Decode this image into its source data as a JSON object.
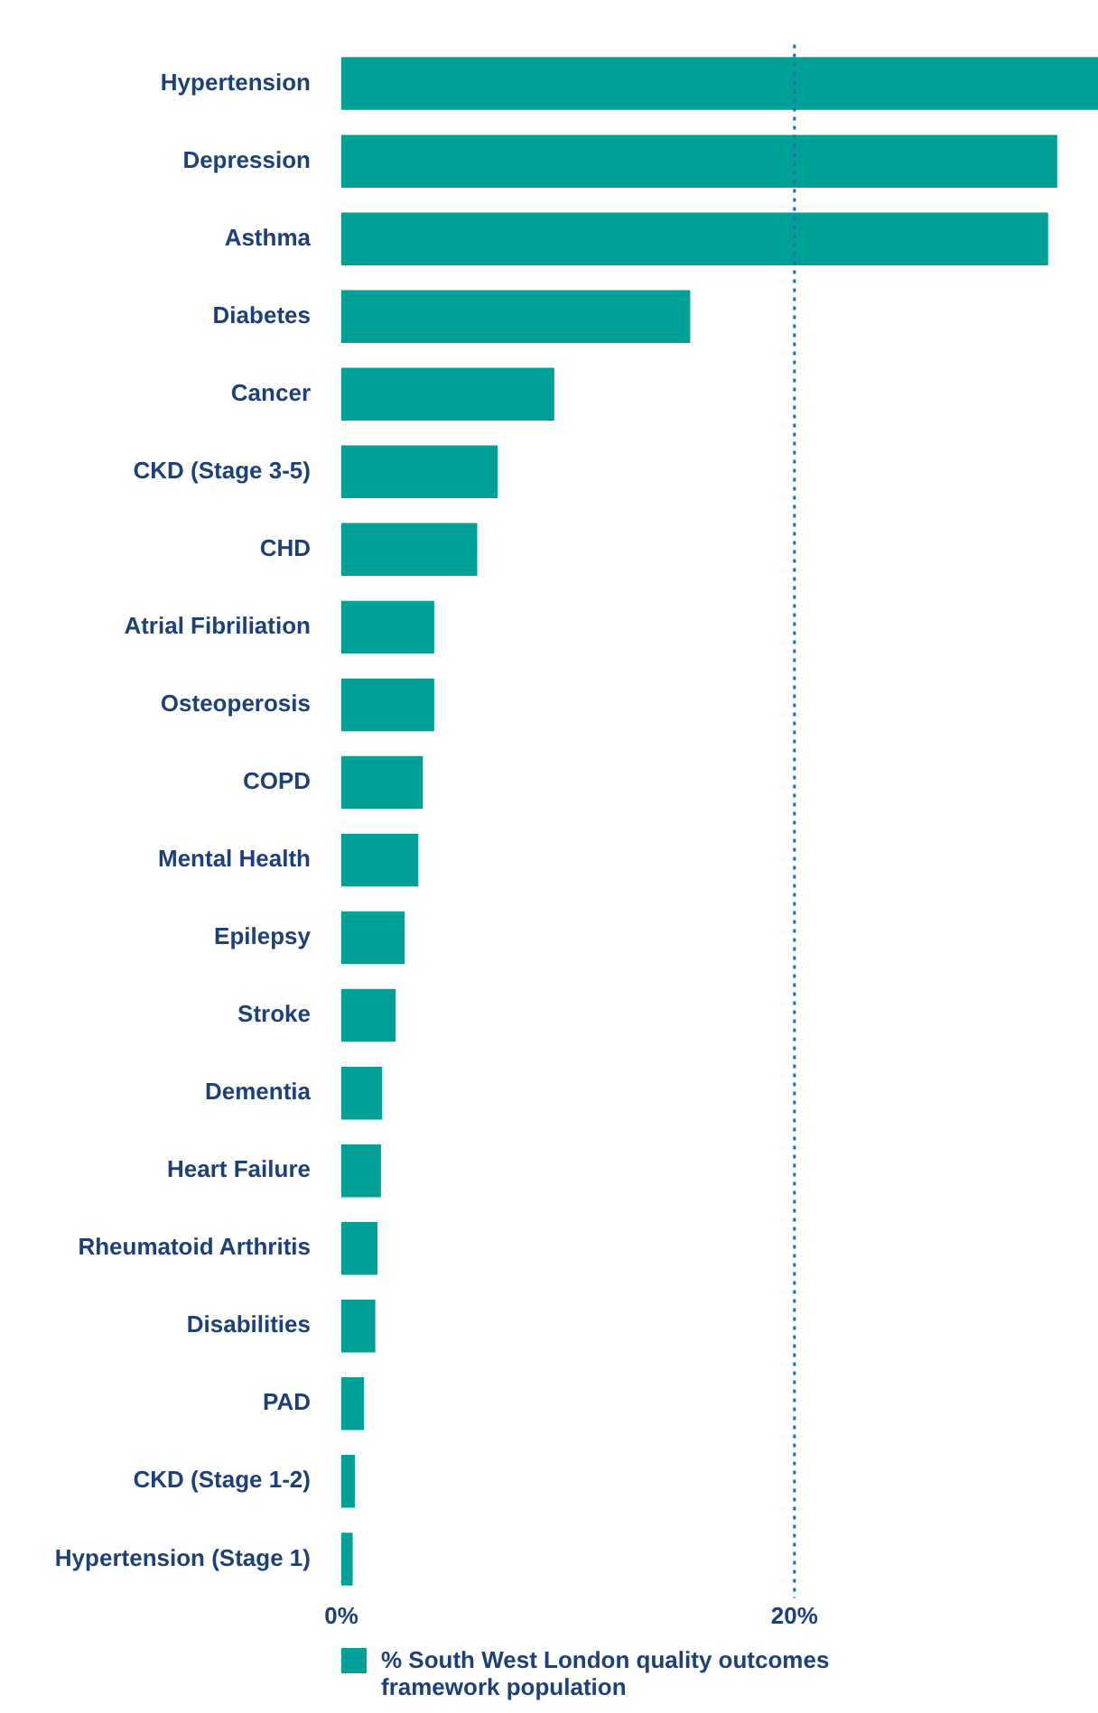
{
  "chart_data": {
    "type": "bar",
    "orientation": "horizontal",
    "categories": [
      "Hypertension",
      "Depression",
      "Asthma",
      "Diabetes",
      "Cancer",
      "CKD (Stage 3-5)",
      "CHD",
      "Atrial Fibriliation",
      "Osteoperosis",
      "COPD",
      "Mental Health",
      "Epilepsy",
      "Stroke",
      "Dementia",
      "Heart Failure",
      "Rheumatoid Arthritis",
      "Disabilities",
      "PAD",
      "CKD (Stage 1-2)",
      "Hypertension (Stage 1)"
    ],
    "series": [
      {
        "name": "% South West London quality outcomes framework population",
        "color": "#00a096",
        "values": [
          33.4,
          31.6,
          31.2,
          15.4,
          9.4,
          6.9,
          6.0,
          4.1,
          4.1,
          3.6,
          3.4,
          2.8,
          2.4,
          1.8,
          1.75,
          1.6,
          1.5,
          1.0,
          0.6,
          0.5
        ]
      }
    ],
    "xlim": [
      0,
      33.4
    ],
    "xticks": [
      {
        "value": 0,
        "label": "0%"
      },
      {
        "value": 20,
        "label": "20%"
      }
    ],
    "ref_lines": [
      {
        "axis": "x",
        "value": 20,
        "color": "#1a6fb0",
        "line_style": "dotted"
      }
    ],
    "grid": false,
    "legend": "bottom"
  }
}
